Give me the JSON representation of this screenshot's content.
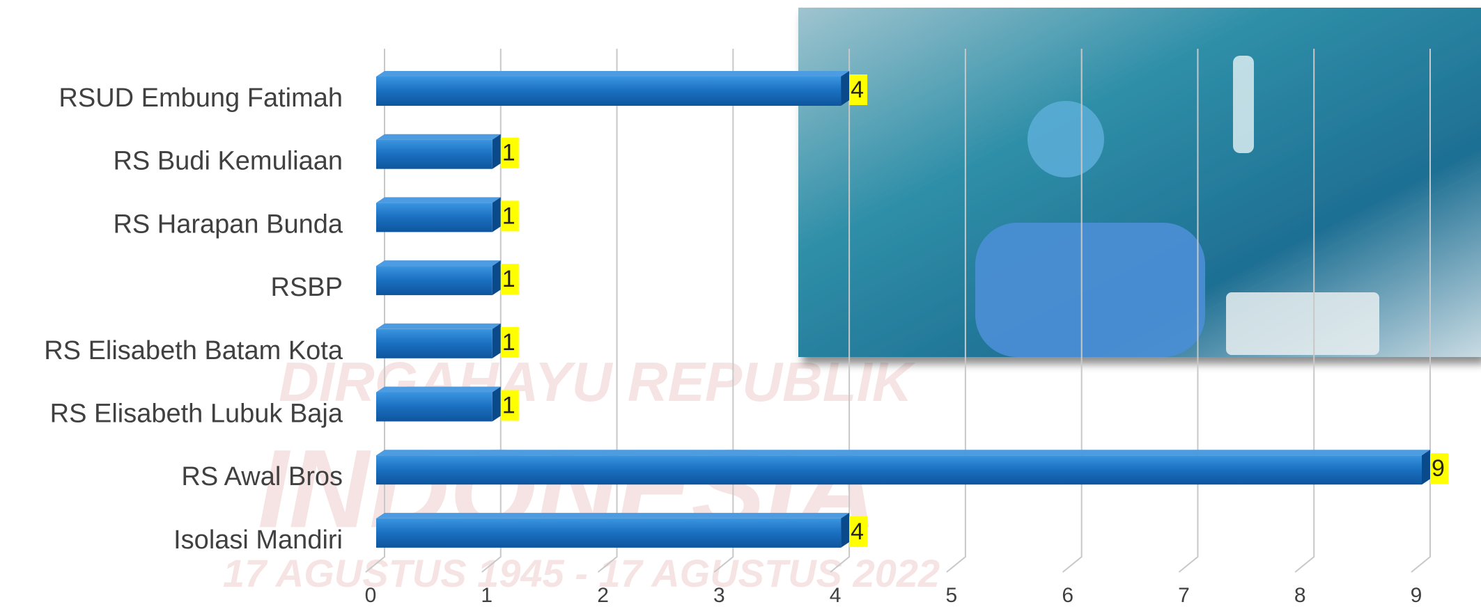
{
  "chart_data": {
    "type": "bar3d_horizontal",
    "categories": [
      "RSUD Embung Fatimah",
      "RS Budi Kemuliaan",
      "RS Harapan Bunda",
      "RSBP",
      "RS Elisabeth Batam Kota",
      "RS Elisabeth Lubuk Baja",
      "RS Awal Bros",
      "Isolasi Mandiri"
    ],
    "values": [
      4,
      1,
      1,
      1,
      1,
      1,
      9,
      4
    ],
    "color": "#1a6fc0",
    "xlim": [
      0,
      9
    ],
    "xticks": [
      0,
      1,
      2,
      3,
      4,
      5,
      6,
      7,
      8,
      9
    ],
    "grid": true,
    "value_label_background": "#ffff00"
  },
  "background_text": [
    "DIRGAHAYU REPUBLIK",
    "INDONESIA",
    "17 AGUSTUS 1945 - 17 AGUSTUS 2022"
  ]
}
